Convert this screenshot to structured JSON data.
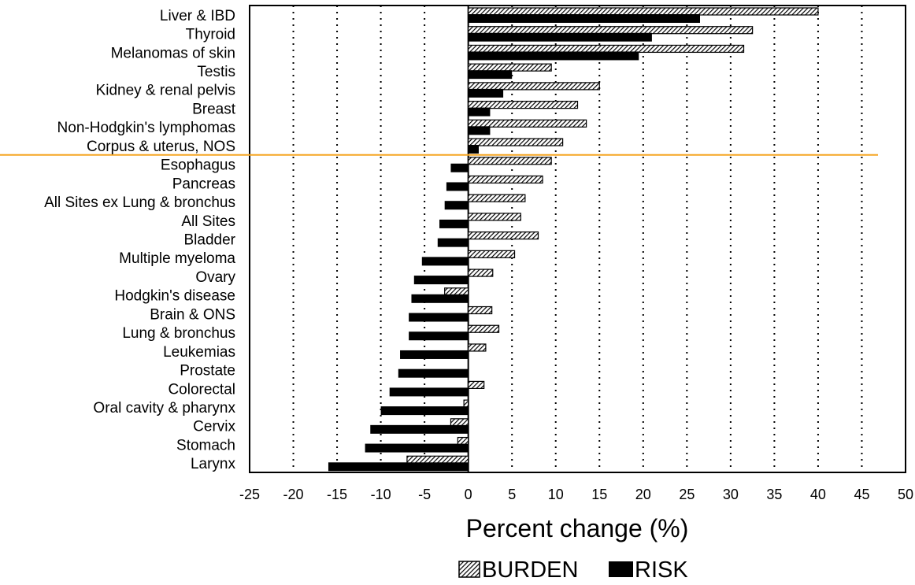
{
  "chart_data": {
    "type": "bar",
    "orientation": "horizontal",
    "categories": [
      "Liver & IBD",
      "Thyroid",
      "Melanomas of skin",
      "Testis",
      "Kidney & renal pelvis",
      "Breast",
      "Non-Hodgkin's lymphomas",
      "Corpus & uterus, NOS",
      "Esophagus",
      "Pancreas",
      "All Sites ex Lung & bronchus",
      "All Sites",
      "Bladder",
      "Multiple myeloma",
      "Ovary",
      "Hodgkin's disease",
      "Brain & ONS",
      "Lung & bronchus",
      "Leukemias",
      "Prostate",
      "Colorectal",
      "Oral cavity & pharynx",
      "Cervix",
      "Stomach",
      "Larynx"
    ],
    "series": [
      {
        "name": "BURDEN",
        "pattern": "hatched",
        "values": [
          40,
          32.5,
          31.5,
          9.5,
          15,
          12.5,
          13.5,
          10.8,
          9.5,
          8.5,
          6.5,
          6,
          8,
          5.3,
          2.8,
          -2.7,
          2.7,
          3.5,
          2,
          0,
          1.8,
          -0.5,
          -2,
          -1.2,
          -7
        ]
      },
      {
        "name": "RISK",
        "pattern": "solid",
        "values": [
          26.5,
          21,
          19.5,
          5,
          4,
          2.5,
          2.5,
          1.2,
          -2,
          -2.5,
          -2.7,
          -3.3,
          -3.5,
          -5.3,
          -6.2,
          -6.5,
          -6.8,
          -6.8,
          -7.8,
          -8,
          -9,
          -10,
          -11.2,
          -11.8,
          -16
        ]
      }
    ],
    "xlabel": "Percent change (%)",
    "ylabel": "",
    "title": "",
    "xlim": [
      -25,
      50
    ],
    "xticks": [
      -25,
      -20,
      -15,
      -10,
      -5,
      0,
      5,
      10,
      15,
      20,
      25,
      30,
      35,
      40,
      45,
      50
    ],
    "grid": "vertical-dotted",
    "legend": {
      "placement": "bottom-center",
      "entries": [
        "BURDEN",
        "RISK"
      ]
    },
    "separator_after_category": "Corpus & uterus, NOS",
    "colors": {
      "risk": "#000000",
      "burden_fg": "#000000",
      "burden_bg": "#ffffff",
      "separator": "#f5a623",
      "grid": "#000000"
    }
  }
}
